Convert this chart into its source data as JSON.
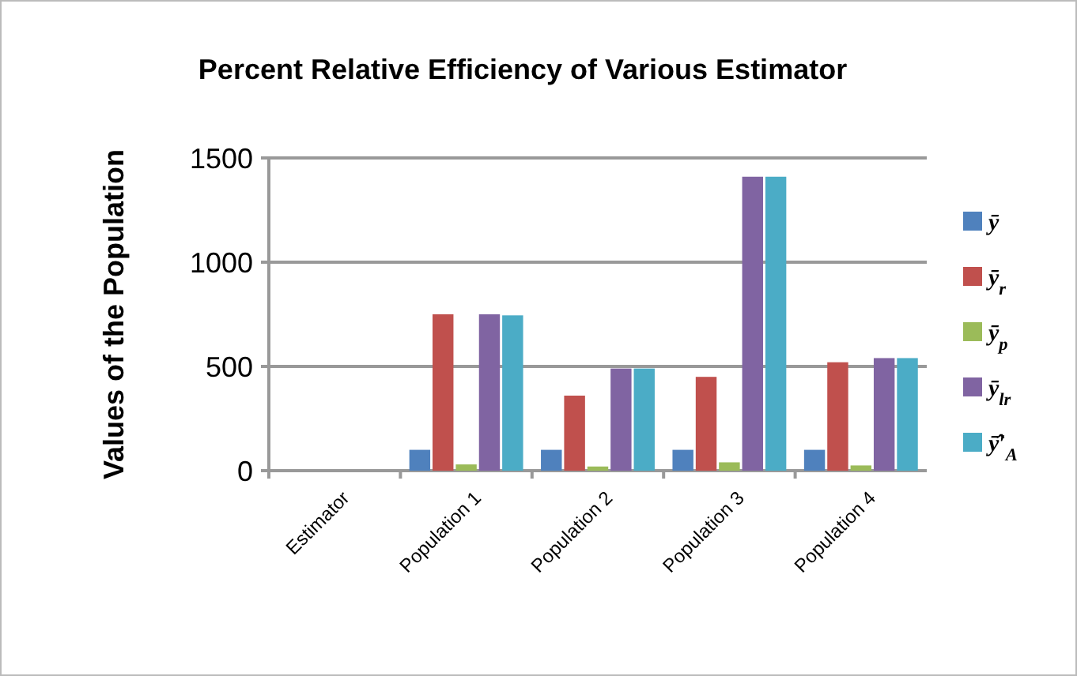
{
  "chart_data": {
    "type": "bar",
    "title": "Percent Relative Efficiency of Various Estimator",
    "ylabel": "Values of the Population",
    "categories": [
      "Estimator",
      "Population 1",
      "Population 2",
      "Population 3",
      "Population 4"
    ],
    "series": [
      {
        "name": "ȳ",
        "color": "#4f81bd",
        "values": [
          null,
          100,
          100,
          100,
          100
        ]
      },
      {
        "name": "ȳ$_{r}$",
        "color": "#c0504d",
        "values": [
          null,
          750,
          360,
          450,
          520
        ]
      },
      {
        "name": "ȳ$_{p}$",
        "color": "#9bbb59",
        "values": [
          null,
          30,
          20,
          40,
          25
        ]
      },
      {
        "name": "ȳ$_{lr}$",
        "color": "#8064a2",
        "values": [
          null,
          750,
          490,
          1410,
          540
        ]
      },
      {
        "name": "ȳ̂′$_{A}$",
        "color": "#4bacc6",
        "values": [
          null,
          745,
          490,
          1410,
          540
        ]
      }
    ],
    "ylim": [
      0,
      1500
    ],
    "yticks": [
      0,
      500,
      1000,
      1500
    ],
    "grid": "y",
    "legend": "right"
  }
}
